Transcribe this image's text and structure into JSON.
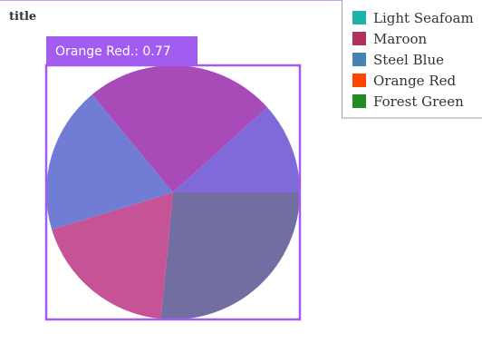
{
  "chart_data": {
    "type": "pie",
    "title": "title",
    "series": [
      {
        "name": "Light Seafoam",
        "value": 0.77,
        "color": "#20b2aa"
      },
      {
        "name": "Maroon",
        "value": 1.0,
        "color": "#b03060"
      },
      {
        "name": "Steel Blue",
        "value": 0.48,
        "color": "#4682b4"
      },
      {
        "name": "Orange Red",
        "value": 0.77,
        "color": "#ff4500"
      },
      {
        "name": "Forest Green",
        "value": 1.09,
        "color": "#228b22"
      }
    ],
    "legend_position": "top-right"
  },
  "highlight": {
    "label": "Orange Red.: 0.77",
    "color": "#a35cf0"
  }
}
